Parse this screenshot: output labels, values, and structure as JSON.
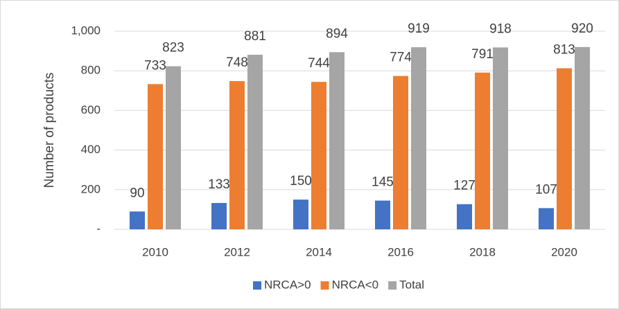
{
  "chart_data": {
    "type": "bar",
    "y_label": "Number of products",
    "categories": [
      "2010",
      "2012",
      "2014",
      "2016",
      "2018",
      "2020"
    ],
    "series": [
      {
        "name": "NRCA>0",
        "color": "#4472c4",
        "values": [
          90,
          133,
          150,
          145,
          127,
          107
        ]
      },
      {
        "name": "NRCA<0",
        "color": "#ed7d31",
        "values": [
          733,
          748,
          744,
          774,
          791,
          813
        ]
      },
      {
        "name": "Total",
        "color": "#a5a5a5",
        "values": [
          823,
          881,
          894,
          919,
          918,
          920
        ]
      }
    ],
    "ylim": [
      0,
      1000
    ],
    "yticks": [
      {
        "value": 0,
        "label": "-"
      },
      200,
      400,
      600,
      800,
      {
        "value": 1000,
        "label": "1,000"
      }
    ],
    "grid": true,
    "legend": "bottom"
  }
}
